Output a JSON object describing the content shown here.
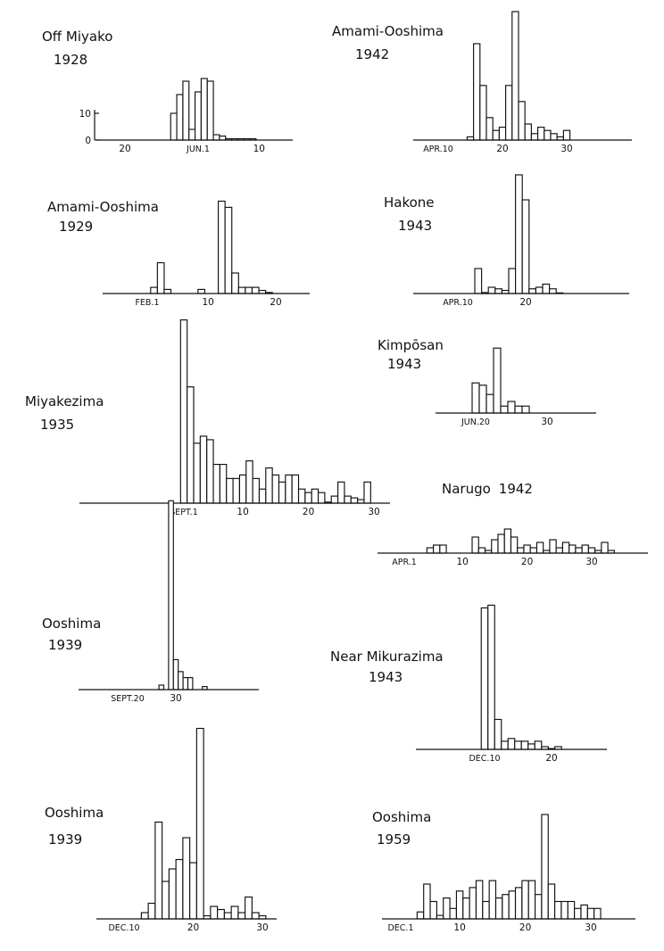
{
  "chart_data": [
    {
      "type": "bar",
      "title": "Off Miyako",
      "subtitle": "1928",
      "y_ticks": [
        "10",
        "0"
      ],
      "y_tick_values": [
        10,
        0
      ],
      "x_ticks": [
        "20",
        "JUN.1",
        "10"
      ],
      "x_tick_days": [
        20,
        32,
        42
      ],
      "x": [
        28,
        29,
        30,
        31,
        32,
        33,
        34,
        35,
        36,
        37,
        38,
        39,
        40,
        41
      ],
      "values": [
        10,
        17,
        22,
        4,
        18,
        23,
        22,
        2,
        1.5,
        0.5,
        0.5,
        0.5,
        0.5,
        0.5
      ],
      "ylim": [
        0,
        25
      ]
    },
    {
      "type": "bar",
      "title": "Amami-Ooshima",
      "subtitle": "1942",
      "x_ticks": [
        "APR.10",
        "20",
        "30"
      ],
      "x_tick_days": [
        10,
        20,
        30
      ],
      "x": [
        15,
        16,
        17,
        18,
        19,
        20,
        21,
        22,
        23,
        24,
        25,
        26,
        27,
        28,
        29,
        30
      ],
      "values": [
        1,
        30,
        17,
        7,
        3,
        4,
        17,
        40,
        12,
        5,
        2,
        4,
        3,
        2,
        1,
        3
      ],
      "ylim": [
        0,
        42
      ]
    },
    {
      "type": "bar",
      "title": "Amami-Ooshima",
      "subtitle": "1929",
      "x_ticks": [
        "FEB.1",
        "10",
        "20"
      ],
      "x_tick_days": [
        1,
        10,
        20
      ],
      "x": [
        2,
        3,
        4,
        9,
        12,
        13,
        14,
        15,
        16,
        17,
        18,
        19
      ],
      "values": [
        3,
        15,
        2,
        2,
        45,
        42,
        10,
        3,
        3,
        3,
        1.5,
        0.5
      ],
      "ylim": [
        0,
        48
      ]
    },
    {
      "type": "bar",
      "title": "Hakone",
      "subtitle": "1943",
      "x_ticks": [
        "APR.10",
        "20"
      ],
      "x_tick_days": [
        10,
        20
      ],
      "x": [
        13,
        14,
        15,
        16,
        17,
        18,
        19,
        20,
        21,
        22,
        23,
        24,
        25
      ],
      "values": [
        8,
        0.3,
        2,
        1.5,
        1,
        8,
        38,
        30,
        1.5,
        2,
        3,
        1.5,
        0.2
      ],
      "ylim": [
        0,
        40
      ]
    },
    {
      "type": "bar",
      "title": "Kimpōsan",
      "subtitle": "1943",
      "x_ticks": [
        "JUN.20",
        "30"
      ],
      "x_tick_days": [
        20,
        30
      ],
      "x": [
        20,
        21,
        22,
        23,
        24,
        25,
        26,
        27
      ],
      "values": [
        13,
        12,
        8,
        28,
        3,
        5,
        3,
        3
      ],
      "ylim": [
        0,
        30
      ]
    },
    {
      "type": "bar",
      "title": "Miyakezima",
      "subtitle": "1935",
      "x_ticks": [
        "SEPT.1",
        "10",
        "20",
        "30"
      ],
      "x_tick_days": [
        1,
        10,
        20,
        30
      ],
      "x": [
        1,
        2,
        3,
        4,
        5,
        6,
        7,
        8,
        9,
        10,
        11,
        12,
        13,
        14,
        15,
        16,
        17,
        18,
        19,
        20,
        21,
        22,
        23,
        24,
        25,
        26,
        27,
        28,
        29
      ],
      "values": [
        52,
        33,
        17,
        19,
        18,
        11,
        11,
        7,
        7,
        8,
        12,
        7,
        4,
        10,
        8,
        6,
        8,
        8,
        4,
        3,
        4,
        3,
        0.3,
        2,
        6,
        2,
        1.5,
        1,
        6
      ],
      "ylim": [
        0,
        54
      ]
    },
    {
      "type": "bar",
      "title": "Narugo",
      "subtitle": "1942",
      "x_ticks": [
        "APR.1",
        "10",
        "20",
        "30"
      ],
      "x_tick_days": [
        1,
        10,
        20,
        30
      ],
      "x": [
        5,
        6,
        7,
        12,
        13,
        14,
        15,
        16,
        17,
        18,
        19,
        20,
        21,
        22,
        23,
        24,
        25,
        26,
        27,
        28,
        29,
        30,
        31,
        32,
        33
      ],
      "values": [
        2,
        3,
        3,
        6,
        2,
        1,
        5,
        7,
        9,
        6,
        2,
        3,
        2,
        4,
        1,
        5,
        2,
        4,
        3,
        2,
        3,
        2,
        1,
        4,
        1
      ],
      "ylim": [
        0,
        12
      ]
    },
    {
      "type": "bar",
      "title": "Ooshima",
      "subtitle": "1939",
      "x_ticks": [
        "SEPT.20",
        "30"
      ],
      "x_tick_days": [
        20,
        30
      ],
      "x": [
        27,
        28,
        29,
        30,
        31,
        32,
        33,
        34,
        35,
        36
      ],
      "values": [
        1.5,
        0,
        63,
        10,
        6,
        4,
        4,
        0,
        0,
        1
      ],
      "ylim": [
        0,
        66
      ]
    },
    {
      "type": "bar",
      "title": "Near Mikurazima",
      "subtitle": "1943",
      "x_ticks": [
        "DEC.10",
        "20"
      ],
      "x_tick_days": [
        10,
        20
      ],
      "x": [
        10,
        11,
        12,
        13,
        14,
        15,
        16,
        17,
        18,
        19,
        20,
        21,
        22,
        23
      ],
      "values": [
        52,
        53,
        11,
        3,
        4,
        3,
        3,
        2,
        3,
        1,
        0.3,
        1,
        0,
        0
      ],
      "ylim": [
        0,
        55
      ]
    },
    {
      "type": "bar",
      "title": "Ooshima",
      "subtitle": "1939",
      "x_ticks": [
        "DEC.10",
        "20",
        "30"
      ],
      "x_tick_days": [
        10,
        20,
        30
      ],
      "x": [
        13,
        14,
        15,
        16,
        17,
        18,
        19,
        20,
        21,
        22,
        23,
        24,
        25,
        26,
        27,
        28,
        29,
        30
      ],
      "values": [
        2,
        5,
        31,
        12,
        16,
        19,
        26,
        18,
        61,
        1,
        4,
        3,
        2,
        4,
        2,
        7,
        2,
        1
      ],
      "ylim": [
        0,
        64
      ]
    },
    {
      "type": "bar",
      "title": "Ooshima",
      "subtitle": "1959",
      "x_ticks": [
        "DEC.1",
        "10",
        "20",
        "30"
      ],
      "x_tick_days": [
        1,
        10,
        20,
        30
      ],
      "x": [
        4,
        5,
        6,
        7,
        8,
        9,
        10,
        11,
        12,
        13,
        14,
        15,
        16,
        17,
        18,
        19,
        20,
        21,
        22,
        23,
        24,
        25,
        26,
        27,
        28,
        29,
        30,
        31
      ],
      "values": [
        2,
        10,
        5,
        1,
        6,
        3,
        8,
        6,
        9,
        11,
        5,
        11,
        6,
        7,
        8,
        9,
        11,
        11,
        7,
        30,
        10,
        5,
        5,
        5,
        3,
        4,
        3,
        3
      ],
      "ylim": [
        0,
        32
      ]
    }
  ]
}
